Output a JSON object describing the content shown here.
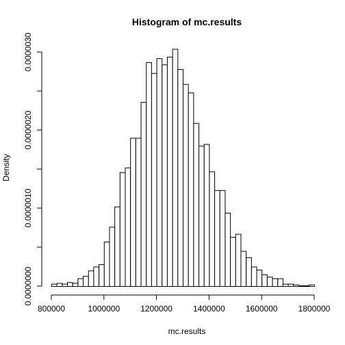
{
  "chart_data": {
    "type": "bar",
    "title": "Histogram of mc.results",
    "xlabel": "mc.results",
    "ylabel": "Density",
    "xlim": [
      800000,
      1800000
    ],
    "ylim": [
      0,
      3e-06
    ],
    "x_ticks": [
      800000,
      1000000,
      1200000,
      1400000,
      1600000,
      1800000
    ],
    "x_tick_labels": [
      "800000",
      "1000000",
      "1200000",
      "1400000",
      "1600000",
      "1800000"
    ],
    "y_ticks": [
      0,
      5e-07,
      1e-06,
      1.5e-06,
      2e-06,
      2.5e-06,
      3e-06
    ],
    "y_tick_labels": [
      "0.0000000",
      "",
      "0.0000010",
      "",
      "0.0000020",
      "",
      "0.0000030"
    ],
    "bin_width": 20000,
    "bin_start": 800000,
    "values": [
      3e-08,
      4e-08,
      3e-08,
      5e-08,
      4e-08,
      1e-07,
      1.3e-07,
      2e-07,
      2.5e-07,
      2.8e-07,
      5.7e-07,
      7.6e-07,
      1.02e-06,
      1.46e-06,
      1.52e-06,
      1.9e-06,
      1.9e-06,
      2.36e-06,
      2.87e-06,
      2.73e-06,
      2.92e-06,
      2.84e-06,
      2.94e-06,
      3.04e-06,
      2.78e-06,
      2.59e-06,
      2.48e-06,
      2.09e-06,
      1.8e-06,
      1.82e-06,
      1.47e-06,
      1.23e-06,
      1.23e-06,
      9.4e-07,
      6.3e-07,
      6.7e-07,
      4.5e-07,
      3.7e-07,
      2.5e-07,
      2.1e-07,
      1.5e-07,
      1.2e-07,
      1e-07,
      1e-07,
      3e-08,
      3e-08,
      2e-08,
      1e-08,
      1e-08,
      2e-08
    ],
    "grid": false,
    "legend": "none"
  }
}
